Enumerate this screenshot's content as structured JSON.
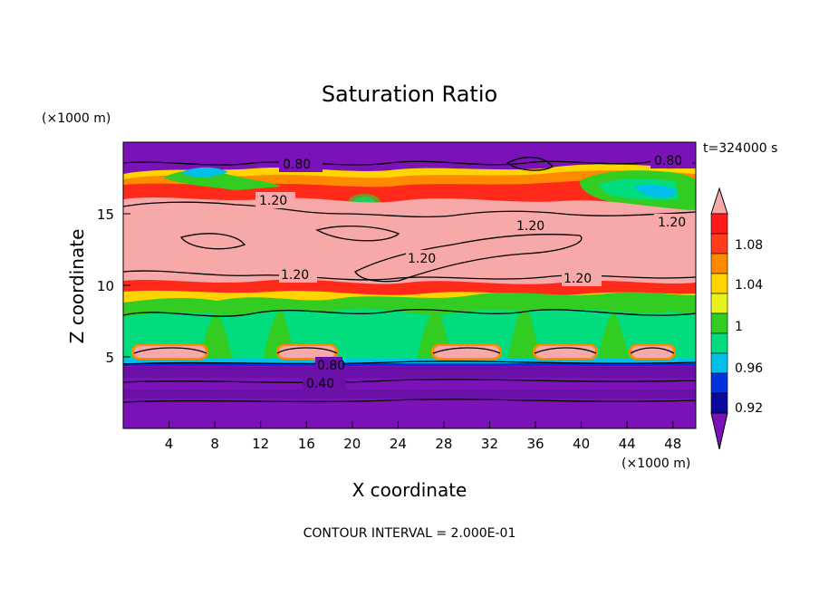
{
  "chart_data": {
    "type": "heatmap",
    "title": "Saturation Ratio",
    "xlabel": "X coordinate",
    "ylabel": "Z coordinate",
    "x_unit": "(×1000 m)",
    "y_unit": "(×1000 m)",
    "time_label": "t=324000 s",
    "footer": "CONTOUR INTERVAL = 2.000E-01",
    "xlim": [
      0,
      50
    ],
    "ylim": [
      0,
      20
    ],
    "x_ticks": [
      "4",
      "8",
      "12",
      "16",
      "20",
      "24",
      "28",
      "32",
      "36",
      "40",
      "44",
      "48"
    ],
    "y_ticks": [
      "5",
      "10",
      "15"
    ],
    "colorbar": {
      "levels": [
        0.92,
        0.96,
        1,
        1.04,
        1.08
      ],
      "labels": [
        "1.08",
        "1.04",
        "1",
        "0.96",
        "0.92"
      ],
      "colors": [
        "#7b12b8",
        "#0a0a9a",
        "#0033dd",
        "#00bfe8",
        "#00dc7e",
        "#33cc22",
        "#e6f21a",
        "#ffd400",
        "#ff8a00",
        "#ff3b1a",
        "#ff1a1a",
        "#f7a8a8"
      ]
    },
    "contour_labels": [
      "0.80",
      "0.80",
      "1.20",
      "1.20",
      "1.20",
      "1.20",
      "1.20",
      "1.20",
      "0.80",
      "0.40"
    ],
    "colors": {
      "low": "#7b12b8",
      "band_dark": "#5d0aa0",
      "high": "#f7a8a8",
      "green": "#33cc22",
      "seagreen": "#00dc7e",
      "cyan": "#00bfe8",
      "red": "#ff1a1a",
      "orange": "#ff8a00",
      "yellow": "#ffd400"
    }
  }
}
